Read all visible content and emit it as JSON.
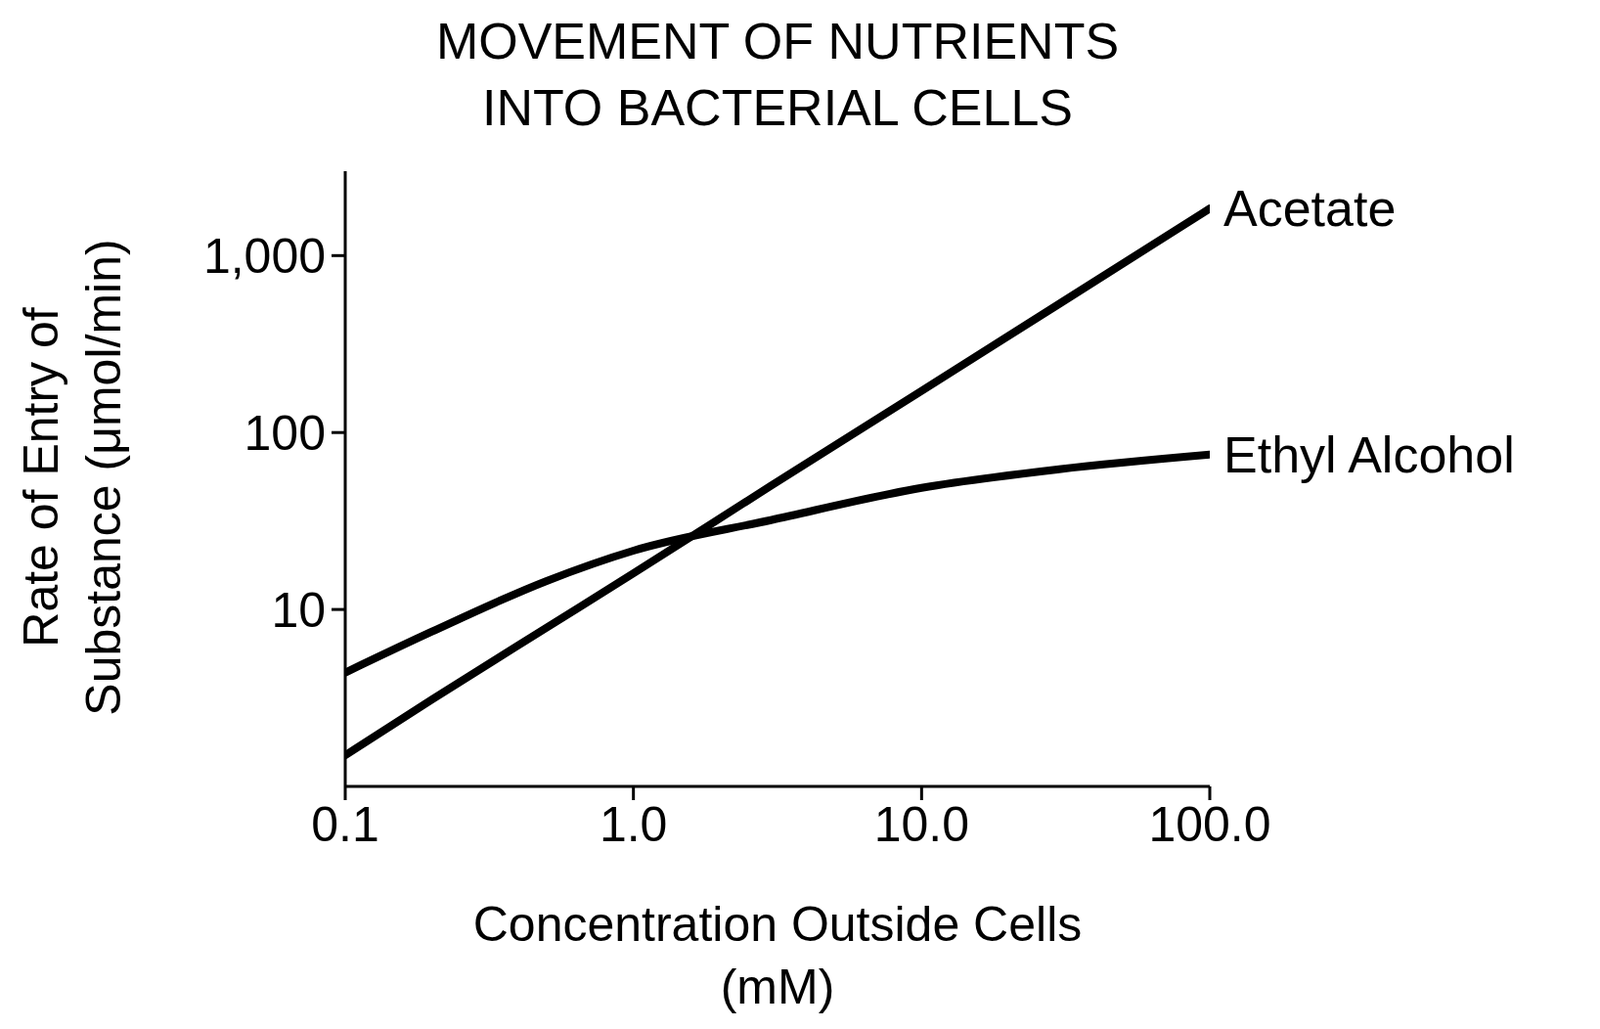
{
  "chart_data": {
    "type": "line",
    "title": "MOVEMENT OF NUTRIENTS\nINTO BACTERIAL CELLS",
    "x_label": "Concentration Outside Cells\n(mM)",
    "y_label": "Rate of Entry of\nSubstance (μmol/min)",
    "x": [
      0.1,
      0.2,
      0.5,
      1,
      3,
      10,
      30,
      100
    ],
    "series": [
      {
        "name": "Acetate",
        "color": "#000000",
        "values": [
          1.5,
          3.1,
          7.9,
          16,
          50,
          172,
          533,
          1845
        ]
      },
      {
        "name": "Ethyl Alcohol",
        "color": "#000000",
        "values": [
          4.4,
          7.5,
          14.5,
          21.5,
          32,
          48.7,
          62,
          75
        ]
      }
    ],
    "xlim": [
      0.1,
      100
    ],
    "xticks": [
      {
        "value": 0.1,
        "label": "0.1"
      },
      {
        "value": 1,
        "label": "1.0"
      },
      {
        "value": 10,
        "label": "10.0"
      },
      {
        "value": 100,
        "label": "100.0"
      }
    ],
    "ylim": [
      1,
      3000
    ],
    "yticks": [
      10,
      100,
      {
        "value": 1000,
        "label": "1,000"
      }
    ],
    "log": true,
    "grid": false
  }
}
